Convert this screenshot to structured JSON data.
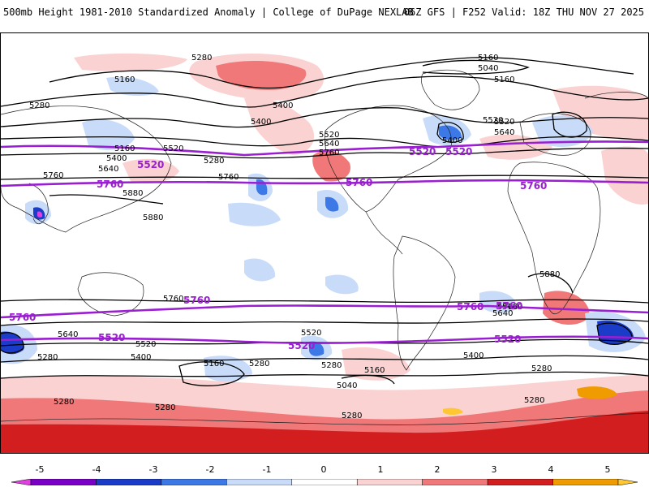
{
  "header": {
    "title_left": "500mb Height 1981-2010 Standardized Anomaly | College of DuPage NEXLAB",
    "title_right": "06Z GFS | F252 Valid: 18Z THU NOV 27 2025"
  },
  "colors": {
    "contour": "#000000",
    "highlight_contour": "#9a1fd0",
    "coast": "#222222",
    "anomaly_scale": [
      "#e040e0",
      "#7a00c8",
      "#1a3cc8",
      "#3c78e6",
      "#c8dcfa",
      "#ffffff",
      "#fad2d2",
      "#f07878",
      "#d21e1e",
      "#f09b00",
      "#ffc832"
    ]
  },
  "contour_labels": [
    "5280",
    "5160",
    "5040",
    "5160",
    "5160",
    "5280",
    "5400",
    "5400",
    "5520",
    "5640",
    "5760",
    "5520",
    "5640",
    "5160",
    "5400",
    "5520",
    "5280",
    "5640",
    "5760",
    "5760",
    "5880",
    "5880",
    "5880",
    "5760",
    "5400",
    "5520",
    "5640",
    "5760",
    "5520",
    "5640",
    "5400",
    "5280",
    "5280",
    "5160",
    "5040",
    "5280",
    "5280",
    "5160",
    "5280",
    "5520",
    "5280",
    "5280",
    "5400",
    "5760",
    "5280"
  ],
  "highlight_labels": [
    "5520",
    "5520",
    "5520",
    "5760",
    "5760",
    "5760",
    "5760",
    "5760",
    "5760",
    "5760",
    "5520",
    "5520",
    "5520"
  ],
  "colorbar": {
    "ticks": [
      "-5",
      "-4",
      "-3",
      "-2",
      "-1",
      "0",
      "1",
      "2",
      "3",
      "4",
      "5"
    ],
    "range": [
      -5.5,
      5.5
    ]
  }
}
